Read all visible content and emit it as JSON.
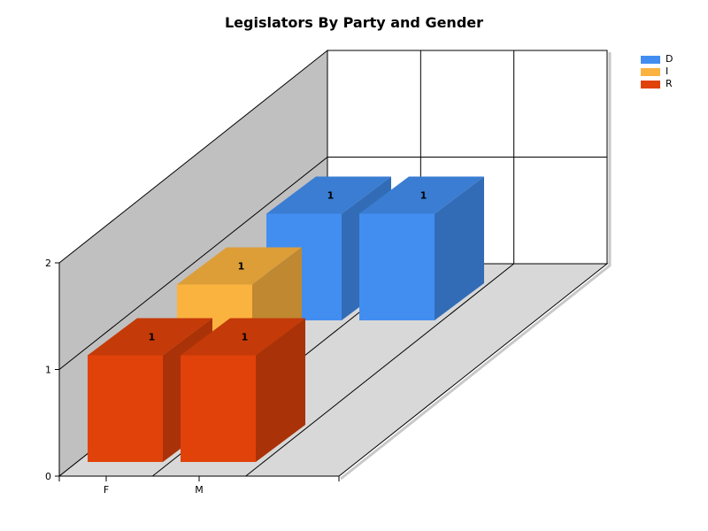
{
  "chart_data": {
    "type": "bar",
    "title": "Legislators By Party and Gender",
    "categories": [
      "F",
      "M"
    ],
    "series": [
      {
        "name": "D",
        "values": [
          1,
          1
        ],
        "color": "#428ef0"
      },
      {
        "name": "I",
        "values": [
          1,
          null
        ],
        "color": "#fbb340"
      },
      {
        "name": "R",
        "values": [
          1,
          1
        ],
        "color": "#e0420a"
      }
    ],
    "ylim": [
      0,
      2
    ],
    "yticks": [
      "0",
      "1",
      "2"
    ],
    "grid": true,
    "three_d": true,
    "legend_position": "top-right",
    "data_labels": true,
    "colors": {
      "back_wall": "#ffffff",
      "side_wall": "#c0c0c0",
      "floor": "#d8d8d8"
    }
  }
}
